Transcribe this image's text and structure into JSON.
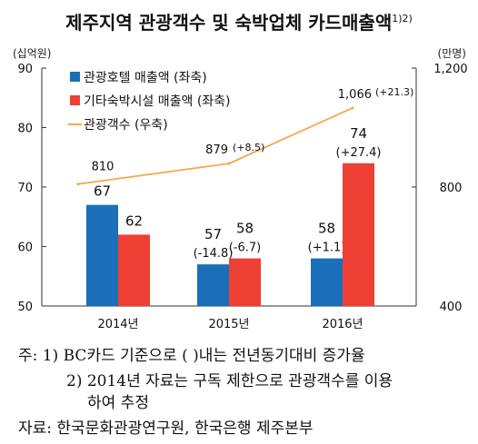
{
  "chart_data": {
    "type": "bar",
    "title": "제주지역 관광객수 및 숙박업체 카드매출액",
    "title_sup": "1)2)",
    "left_unit": "(십억원)",
    "right_unit": "(만명)",
    "categories": [
      "2014년",
      "2015년",
      "2016년"
    ],
    "ylim_left": [
      50,
      90
    ],
    "yticks_left": [
      "50",
      "60",
      "70",
      "80",
      "90"
    ],
    "ylim_right": [
      400,
      1200
    ],
    "yticks_right": [
      "400",
      "800",
      "1,200"
    ],
    "series": [
      {
        "name": "관광호텔 매출액 (좌축)",
        "kind": "bar",
        "axis": "left",
        "color": "#1a6fb8",
        "values": [
          67,
          57,
          58
        ],
        "labels": [
          "67",
          "57",
          "58"
        ],
        "changes": [
          "",
          "(-14.8)",
          "(+1.1)"
        ]
      },
      {
        "name": "기타숙박시설 매출액 (좌축)",
        "kind": "bar",
        "axis": "left",
        "color": "#ee4034",
        "values": [
          62,
          58,
          74
        ],
        "labels": [
          "62",
          "58",
          "74"
        ],
        "changes": [
          "",
          "(-6.7)",
          "(+27.4)"
        ]
      },
      {
        "name": "관광객수 (우축)",
        "kind": "line",
        "axis": "right",
        "color": "#f4a74c",
        "values": [
          810,
          879,
          1066
        ],
        "labels": [
          "810",
          "879",
          "1,066"
        ],
        "changes": [
          "",
          "(+8.5)",
          "(+21.3)"
        ]
      }
    ],
    "legend_position": "top-left",
    "grid": false
  },
  "notes": {
    "line1": "주: 1) BC카드 기준으로 (   )내는 전년동기대비 증가율",
    "line2": "2) 2014년 자료는 구독 제한으로 관광객수를 이용",
    "line3": "하여 추정",
    "source": "자료: 한국문화관광연구원, 한국은행 제주본부"
  }
}
